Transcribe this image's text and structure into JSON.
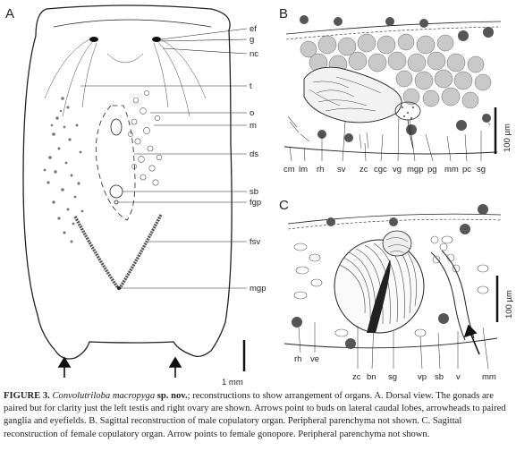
{
  "panels": {
    "a": {
      "letter": "A",
      "labels": [
        "ef",
        "g",
        "nc",
        "t",
        "o",
        "m",
        "ds",
        "sb",
        "fgp",
        "fsv",
        "mgp"
      ],
      "scale_bar": "1 mm"
    },
    "b": {
      "letter": "B",
      "labels": [
        "cm",
        "lm",
        "rh",
        "sv",
        "zc",
        "cgc",
        "vg",
        "mgp",
        "pg",
        "mm",
        "pc",
        "sg"
      ],
      "scale_bar": "100 µm"
    },
    "c": {
      "letter": "C",
      "labels": [
        "rh",
        "ve",
        "zc",
        "bn",
        "sg",
        "vp",
        "sb",
        "v",
        "mm"
      ],
      "scale_bar": "100 µm"
    }
  },
  "caption": {
    "label": "FIGURE 3.",
    "species": "Convolutriloba macropyga",
    "sp_nov": "sp. nov.",
    "text": "; reconstructions to show arrangement of organs. A. Dorsal view. The gonads are paired but for clarity just the left testis and right ovary are shown. Arrows point to buds on lateral caudal lobes, arrowheads to paired ganglia and eyefields. B. Sagittal reconstruction of male copulatory organ. Peripheral parenchyma not shown. C. Sagittal reconstruction of female copulatory organ. Arrow points to female gonopore. Peripheral parenchyma not shown."
  },
  "colors": {
    "ink": "#222222",
    "grey_fill": "#bdbdbd",
    "dark_fill": "#555555"
  }
}
